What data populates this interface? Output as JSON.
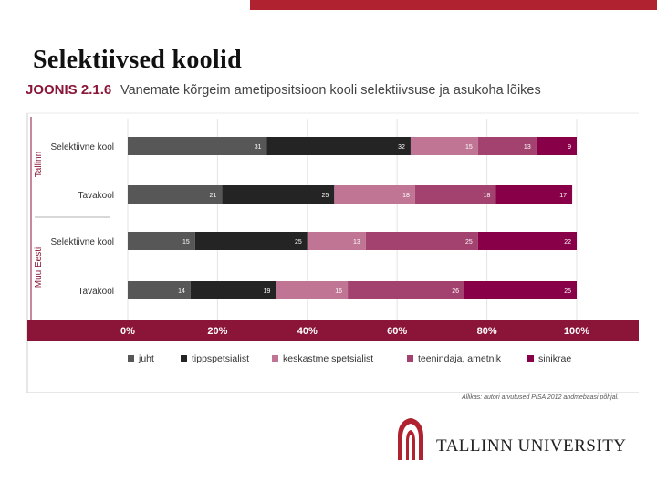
{
  "slide": {
    "title": "Selektiivsed koolid",
    "university": "TALLINN UNIVERSITY"
  },
  "figure": {
    "label": "JOONIS 2.1.6",
    "title": "Vanemate kõrgeim ametipositsioon kooli selektiivsuse ja asukoha lõikes",
    "source": "Allikas: autori arvutused PISA 2012 andmebaasi põhjal."
  },
  "colors": {
    "juht": "#575757",
    "tippspetsialist": "#242424",
    "keskastme_spetsialist": "#c17594",
    "teenindaja_ametnik": "#a4426f",
    "sinikrae": "#870048",
    "accent": "#8a1538",
    "topbar": "#b0222f"
  },
  "chart_data": {
    "type": "bar",
    "orientation": "horizontal",
    "stacked": true,
    "title": "Vanemate kõrgeim ametipositsioon kooli selektiivsuse ja asukoha lõikes",
    "groups": [
      {
        "name": "Tallinn",
        "categories": [
          "Selektiivne kool",
          "Tavakool"
        ]
      },
      {
        "name": "Muu Eesti",
        "categories": [
          "Selektiivne kool",
          "Tavakool"
        ]
      }
    ],
    "categories": [
      "Selektiivne kool",
      "Tavakool",
      "Selektiivne kool",
      "Tavakool"
    ],
    "series": [
      {
        "name": "juht",
        "values": [
          31,
          21,
          15,
          14
        ]
      },
      {
        "name": "tippspetsialist",
        "values": [
          32,
          25,
          25,
          19
        ]
      },
      {
        "name": "keskastme spetsialist",
        "values": [
          15,
          18,
          13,
          16
        ]
      },
      {
        "name": "teenindaja, ametnik",
        "values": [
          13,
          18,
          25,
          26
        ]
      },
      {
        "name": "sinikrae",
        "values": [
          9,
          17,
          22,
          25
        ]
      }
    ],
    "xlim": [
      0,
      100
    ],
    "xticks": [
      "0%",
      "20%",
      "40%",
      "60%",
      "80%",
      "100%"
    ],
    "legend_position": "bottom"
  }
}
